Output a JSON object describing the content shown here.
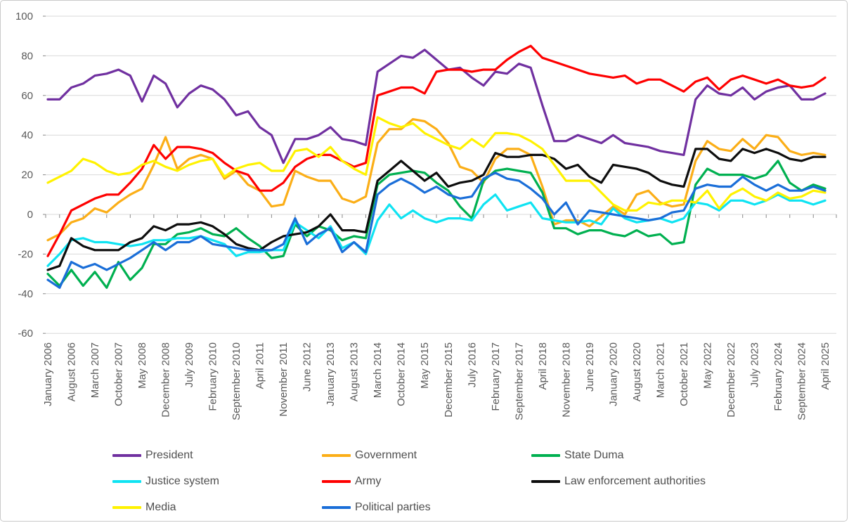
{
  "chart_data": {
    "type": "line",
    "title": "",
    "xlabel": "",
    "ylabel": "",
    "ylim": [
      -60,
      100
    ],
    "y_ticks": [
      100,
      80,
      60,
      40,
      20,
      0,
      -20,
      -40,
      -60
    ],
    "grid": "horizontal",
    "legend_position": "bottom",
    "note": "67 samples per series, evenly spaced Jan 2006 - Apr 2025; x tick labels sit at every second sample (even indices)",
    "x_tick_labels": [
      "January 2006",
      "August 2006",
      "March 2007",
      "October 2007",
      "May 2008",
      "December 2008",
      "July 2009",
      "February 2010",
      "September 2010",
      "April 2011",
      "November 2011",
      "June 2012",
      "January 2013",
      "August 2013",
      "March 2014",
      "October 2014",
      "May 2015",
      "December 2015",
      "July 2016",
      "February 2017",
      "September 2017",
      "April 2018",
      "November 2018",
      "June 2019",
      "January 2020",
      "August 2020",
      "March 2021",
      "October 2021",
      "May 2022",
      "December 2022",
      "July 2023",
      "February 2024",
      "September 2024",
      "April 2025"
    ],
    "series": [
      {
        "name": "President",
        "color": "#7030A0",
        "values": [
          58,
          58,
          64,
          66,
          70,
          71,
          73,
          70,
          57,
          70,
          66,
          54,
          61,
          65,
          63,
          58,
          50,
          52,
          44,
          40,
          26,
          38,
          38,
          40,
          44,
          38,
          37,
          35,
          72,
          76,
          80,
          79,
          83,
          78,
          73,
          74,
          69,
          65,
          72,
          71,
          76,
          74,
          55,
          37,
          37,
          40,
          38,
          36,
          40,
          36,
          35,
          34,
          32,
          31,
          30,
          58,
          65,
          61,
          60,
          64,
          58,
          62,
          64,
          65,
          58,
          58,
          61
        ]
      },
      {
        "name": "Government",
        "color": "#FBAE17",
        "values": [
          -13,
          -10,
          -4,
          -2,
          3,
          1,
          6,
          10,
          13,
          25,
          39,
          23,
          28,
          30,
          28,
          18,
          22,
          15,
          12,
          4,
          5,
          22,
          19,
          17,
          17,
          8,
          6,
          9,
          36,
          43,
          43,
          48,
          47,
          43,
          36,
          24,
          22,
          16,
          28,
          33,
          33,
          30,
          14,
          -5,
          -3,
          -3,
          -6,
          -1,
          4,
          0,
          10,
          12,
          6,
          4,
          5,
          27,
          37,
          33,
          32,
          38,
          33,
          40,
          39,
          32,
          30,
          31,
          30
        ]
      },
      {
        "name": "State Duma",
        "color": "#00B050",
        "values": [
          -30,
          -36,
          -28,
          -36,
          -29,
          -37,
          -24,
          -33,
          -27,
          -15,
          -15,
          -10,
          -9,
          -7,
          -10,
          -11,
          -7,
          -12,
          -16,
          -22,
          -21,
          -5,
          -11,
          -6,
          -8,
          -13,
          -11,
          -12,
          15,
          20,
          21,
          22,
          21,
          16,
          12,
          4,
          -2,
          17,
          22,
          23,
          22,
          21,
          11,
          -7,
          -7,
          -10,
          -8,
          -8,
          -10,
          -11,
          -8,
          -11,
          -10,
          -15,
          -14,
          15,
          23,
          20,
          20,
          20,
          18,
          20,
          27,
          16,
          12,
          15,
          13
        ]
      },
      {
        "name": "Justice system",
        "color": "#0FE3F2",
        "values": [
          -26,
          -20,
          -13,
          -12,
          -14,
          -14,
          -15,
          -16,
          -15,
          -13,
          -13,
          -12,
          -12,
          -11,
          -13,
          -15,
          -21,
          -19,
          -19,
          -18,
          -18,
          -4,
          -8,
          -12,
          -6,
          -17,
          -14,
          -20,
          -3,
          5,
          -2,
          2,
          -2,
          -4,
          -2,
          -2,
          -3,
          5,
          10,
          2,
          4,
          6,
          -2,
          -3,
          -4,
          -4,
          -3,
          -5,
          3,
          -2,
          -4,
          -3,
          -2,
          -4,
          -2,
          6,
          5,
          2,
          7,
          7,
          5,
          7,
          10,
          7,
          7,
          5,
          7
        ]
      },
      {
        "name": "Army",
        "color": "#FE0000",
        "values": [
          -21,
          -10,
          2,
          5,
          8,
          10,
          10,
          16,
          23,
          35,
          28,
          34,
          34,
          33,
          31,
          26,
          22,
          20,
          12,
          12,
          16,
          24,
          28,
          30,
          30,
          27,
          24,
          26,
          60,
          62,
          64,
          64,
          61,
          72,
          73,
          73,
          72,
          73,
          73,
          78,
          82,
          85,
          79,
          77,
          75,
          73,
          71,
          70,
          69,
          70,
          66,
          68,
          68,
          65,
          62,
          67,
          69,
          63,
          68,
          70,
          68,
          66,
          68,
          65,
          64,
          65,
          69
        ]
      },
      {
        "name": "Law enforcement authorities",
        "color": "#0D0D0D",
        "values": [
          -28,
          -26,
          -12,
          -16,
          -18,
          -18,
          -18,
          -14,
          -12,
          -6,
          -8,
          -5,
          -5,
          -4,
          -6,
          -10,
          -15,
          -17,
          -18,
          -14,
          -11,
          -10,
          -9,
          -6,
          0,
          -8,
          -8,
          -9,
          17,
          22,
          27,
          22,
          17,
          21,
          14,
          16,
          17,
          20,
          31,
          29,
          29,
          30,
          30,
          28,
          23,
          25,
          19,
          16,
          25,
          24,
          23,
          21,
          17,
          15,
          14,
          33,
          33,
          28,
          27,
          33,
          31,
          33,
          31,
          28,
          27,
          29,
          29
        ]
      },
      {
        "name": "Media",
        "color": "#FFF200",
        "values": [
          16,
          19,
          22,
          28,
          26,
          22,
          20,
          21,
          25,
          27,
          24,
          22,
          25,
          27,
          28,
          19,
          23,
          25,
          26,
          22,
          22,
          32,
          33,
          29,
          34,
          27,
          23,
          20,
          49,
          46,
          44,
          46,
          41,
          38,
          35,
          33,
          38,
          34,
          41,
          41,
          40,
          37,
          33,
          25,
          17,
          17,
          17,
          11,
          5,
          2,
          2,
          6,
          5,
          7,
          7,
          6,
          12,
          3,
          10,
          13,
          9,
          7,
          11,
          8,
          9,
          12,
          11
        ]
      },
      {
        "name": "Political parties",
        "color": "#1A6ED8",
        "values": [
          -33,
          -37,
          -24,
          -27,
          -25,
          -28,
          -25,
          -22,
          -18,
          -14,
          -18,
          -14,
          -14,
          -11,
          -15,
          -16,
          -17,
          -18,
          -18,
          -18,
          -15,
          -2,
          -15,
          -10,
          -7,
          -19,
          -14,
          -19,
          10,
          15,
          18,
          15,
          11,
          14,
          10,
          8,
          9,
          18,
          21,
          18,
          17,
          13,
          8,
          0,
          6,
          -5,
          2,
          1,
          0,
          -1,
          -2,
          -3,
          -2,
          1,
          2,
          13,
          15,
          14,
          14,
          19,
          15,
          12,
          15,
          12,
          12,
          14,
          12
        ]
      }
    ],
    "legend_rows": [
      [
        "President",
        "Government",
        "State Duma"
      ],
      [
        "Justice system",
        "Army",
        "Law enforcement authorities"
      ],
      [
        "Media",
        "Political parties"
      ]
    ]
  },
  "style": {
    "axis_text_color": "#595959",
    "gridline_color": "#D9D9D9",
    "tick_color": "#898989",
    "background": "#FFFFFF"
  }
}
